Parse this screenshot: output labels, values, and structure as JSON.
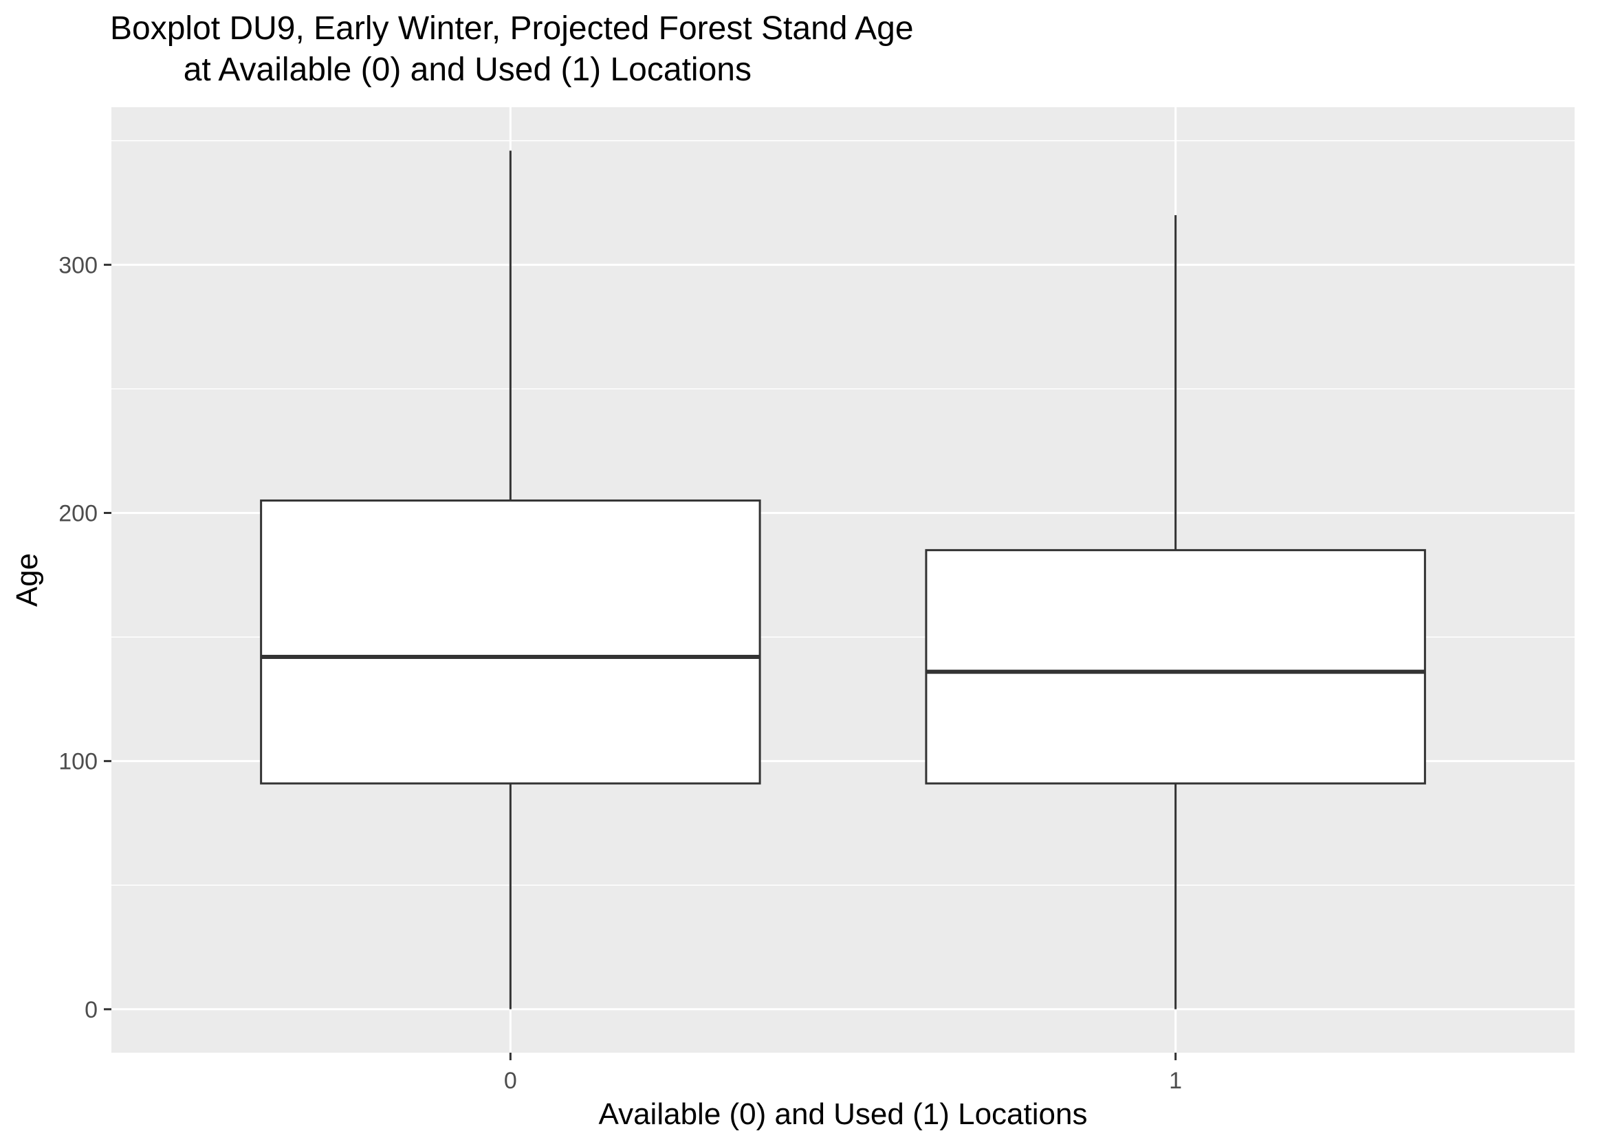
{
  "chart_data": {
    "type": "boxplot",
    "title": "Boxplot DU9, Early Winter, Projected Forest Stand Age\n        at Available (0) and Used (1) Locations",
    "xlabel": "Available (0) and Used (1) Locations",
    "ylabel": "Age",
    "categories": [
      "0",
      "1"
    ],
    "boxes": [
      {
        "category": "0",
        "min": 0,
        "q1": 91,
        "median": 142,
        "q3": 205,
        "max": 346
      },
      {
        "category": "1",
        "min": 0,
        "q1": 91,
        "median": 136,
        "q3": 185,
        "max": 320
      }
    ],
    "ylim": [
      -17.5,
      363.5
    ],
    "yticks": [
      0,
      100,
      200,
      300
    ],
    "ytick_labels": [
      "0",
      "100",
      "200",
      "300"
    ],
    "y_minor_gridlines": [
      50,
      150,
      250,
      350
    ],
    "grid": true,
    "legend": "none",
    "colors": {
      "panel_background": "#ebebeb",
      "grid": "#ffffff",
      "box_fill": "#ffffff",
      "box_line": "#333333",
      "tick_label": "#4d4d4d"
    }
  }
}
